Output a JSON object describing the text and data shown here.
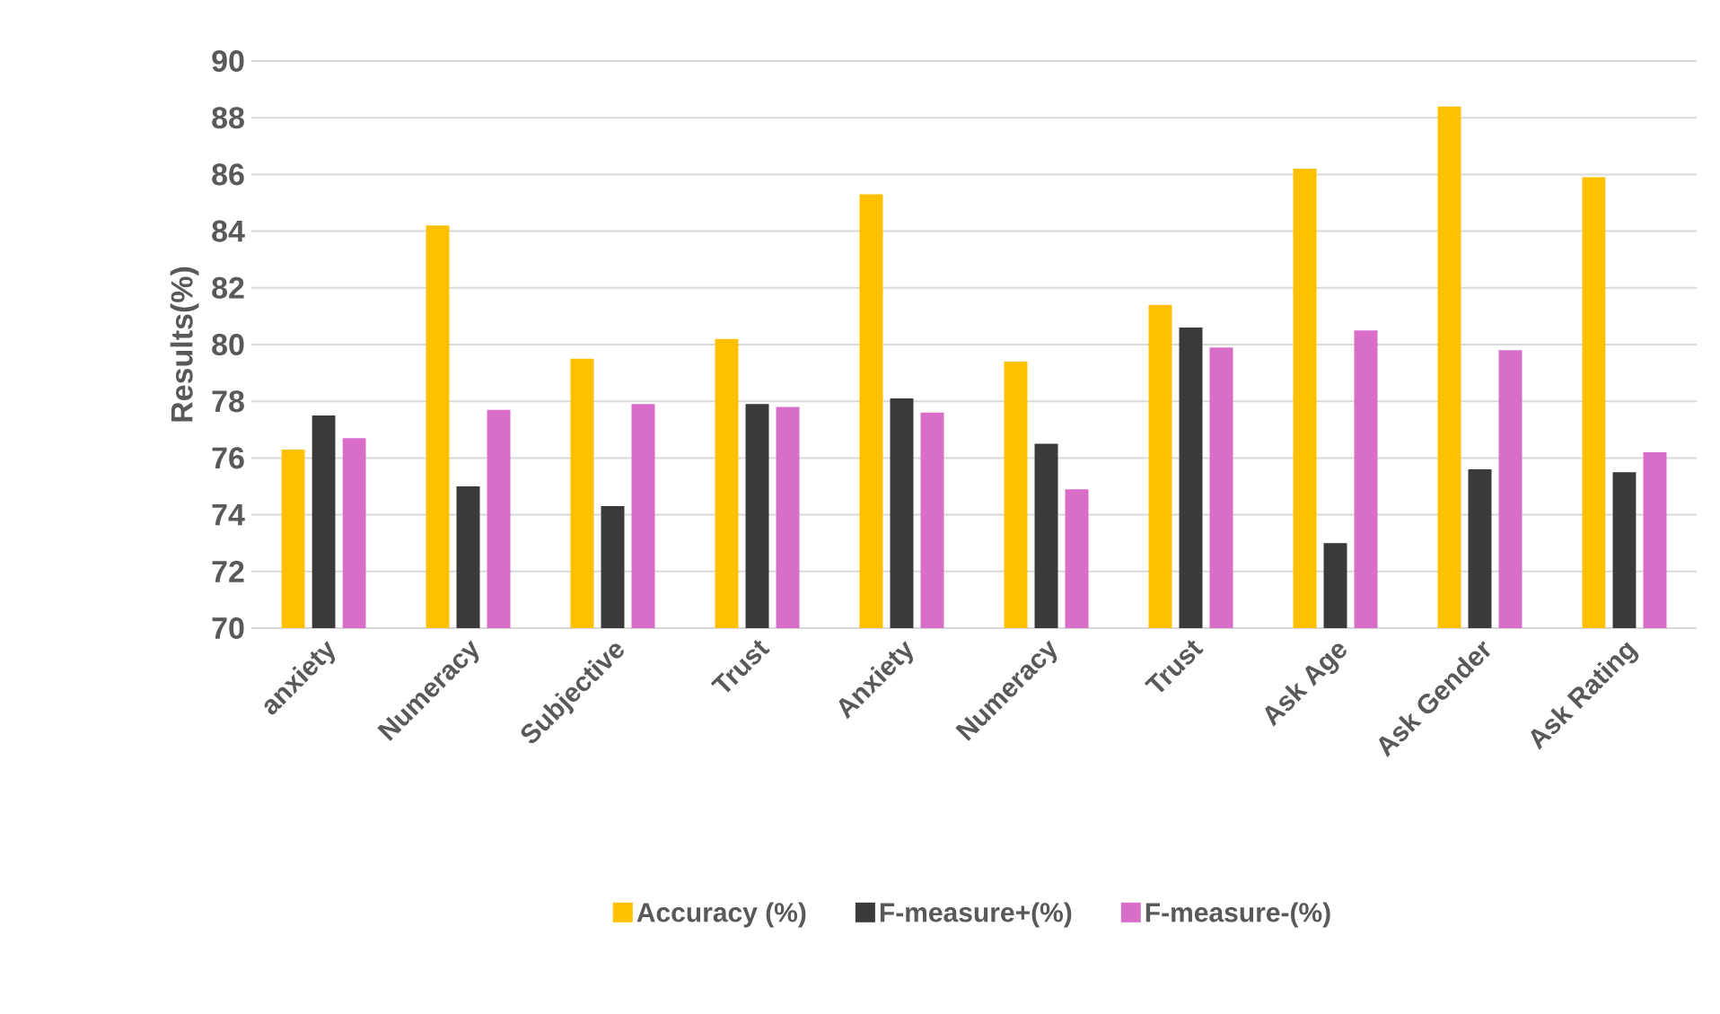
{
  "chart_data": {
    "type": "bar",
    "ylabel": "Results(%)",
    "categories": [
      "anxiety",
      "Numeracy",
      "Subjective",
      "Trust",
      "Anxiety",
      "Numeracy",
      "Trust",
      "Ask Age",
      "Ask Gender",
      "Ask Rating"
    ],
    "series": [
      {
        "name": "Accuracy (%)",
        "color": "#ffc000",
        "values": [
          76.3,
          84.2,
          79.5,
          80.2,
          85.3,
          79.4,
          81.4,
          86.2,
          88.4,
          85.9
        ]
      },
      {
        "name": "F-measure+(%)",
        "color": "#3a3a3a",
        "values": [
          77.5,
          75.0,
          74.3,
          77.9,
          78.1,
          76.5,
          80.6,
          73.0,
          75.6,
          75.5
        ]
      },
      {
        "name": "F-measure-(%)",
        "color": "#d86ec8",
        "values": [
          76.7,
          77.7,
          77.9,
          77.8,
          77.6,
          74.9,
          79.9,
          80.5,
          79.8,
          76.2
        ]
      }
    ],
    "ylim": [
      70,
      90
    ],
    "yticks": [
      70,
      72,
      74,
      76,
      78,
      80,
      82,
      84,
      86,
      88,
      90
    ],
    "grid": "y",
    "legend": "bottom"
  }
}
